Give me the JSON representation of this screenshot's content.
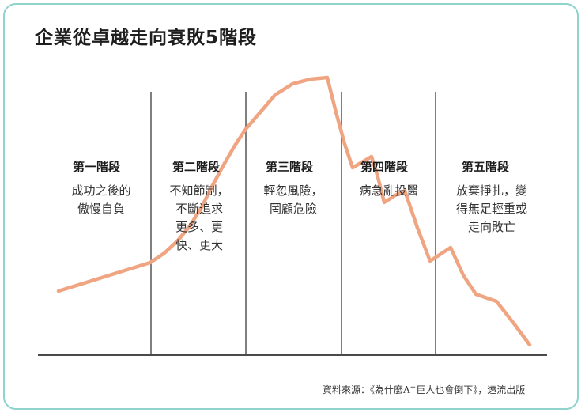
{
  "title": "企業從卓越走向衰敗5階段",
  "stages": [
    {
      "label": "第一階段",
      "desc_lines": [
        "成功之後的",
        "傲慢自負"
      ]
    },
    {
      "label": "第二階段",
      "desc_lines": [
        "不知節制，",
        "不斷追求",
        "更多、更",
        "快、更大"
      ]
    },
    {
      "label": "第三階段",
      "desc_lines": [
        "輕忽風險，",
        "罔顧危險"
      ]
    },
    {
      "label": "第四階段",
      "desc_lines": [
        "病急亂投醫"
      ]
    },
    {
      "label": "第五階段",
      "desc_lines": [
        "放棄掙扎，變",
        "得無足輕重或",
        "走向敗亡"
      ]
    }
  ],
  "source": {
    "before": "資料來源：《為什麼A",
    "sup": "+",
    "after": "巨人也會倒下》，遠流出版"
  },
  "colors": {
    "curve": "#f0a582",
    "border": "#8fd3cc",
    "axis": "#4a4a4a",
    "divider": "#555555"
  }
}
